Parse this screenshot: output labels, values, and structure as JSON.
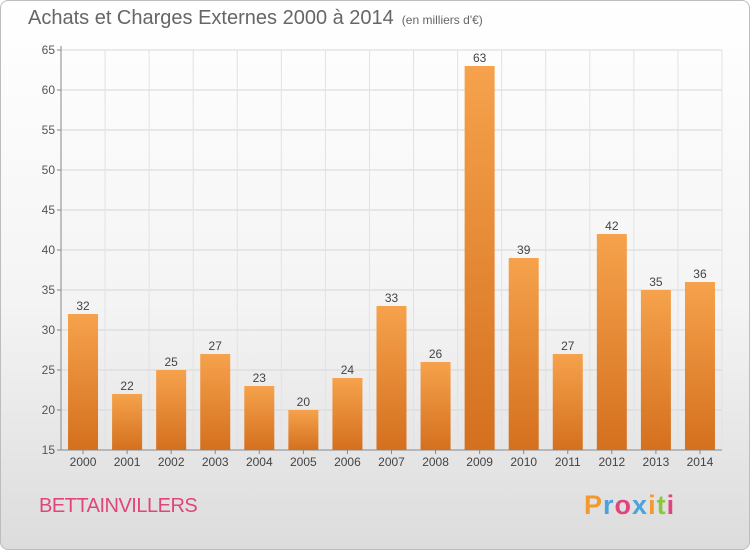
{
  "title": "Achats et Charges Externes 2000 à 2014",
  "subtitle": "(en milliers d'€)",
  "town": "BETTAINVILLERS",
  "logo": {
    "text": "Proxiti",
    "letters": [
      "P",
      "r",
      "o",
      "x",
      "i",
      "t",
      "i"
    ],
    "colors": [
      "#f29a2e",
      "#4aa3df",
      "#e0457b",
      "#4aa3df",
      "#f29a2e",
      "#8cc63f",
      "#e0457b"
    ]
  },
  "chart_data": {
    "type": "bar",
    "title": "Achats et Charges Externes 2000 à 2014",
    "subtitle": "(en milliers d'€)",
    "categories": [
      "2000",
      "2001",
      "2002",
      "2003",
      "2004",
      "2005",
      "2006",
      "2007",
      "2008",
      "2009",
      "2010",
      "2011",
      "2012",
      "2013",
      "2014"
    ],
    "values": [
      32,
      22,
      25,
      27,
      23,
      20,
      24,
      33,
      26,
      63,
      39,
      27,
      42,
      35,
      36
    ],
    "ylim": [
      15,
      65
    ],
    "yticks": [
      15,
      20,
      25,
      30,
      35,
      40,
      45,
      50,
      55,
      60,
      65
    ],
    "grid": true,
    "bar_color_top": "#f6a24c",
    "bar_color_bottom": "#d4701e"
  }
}
